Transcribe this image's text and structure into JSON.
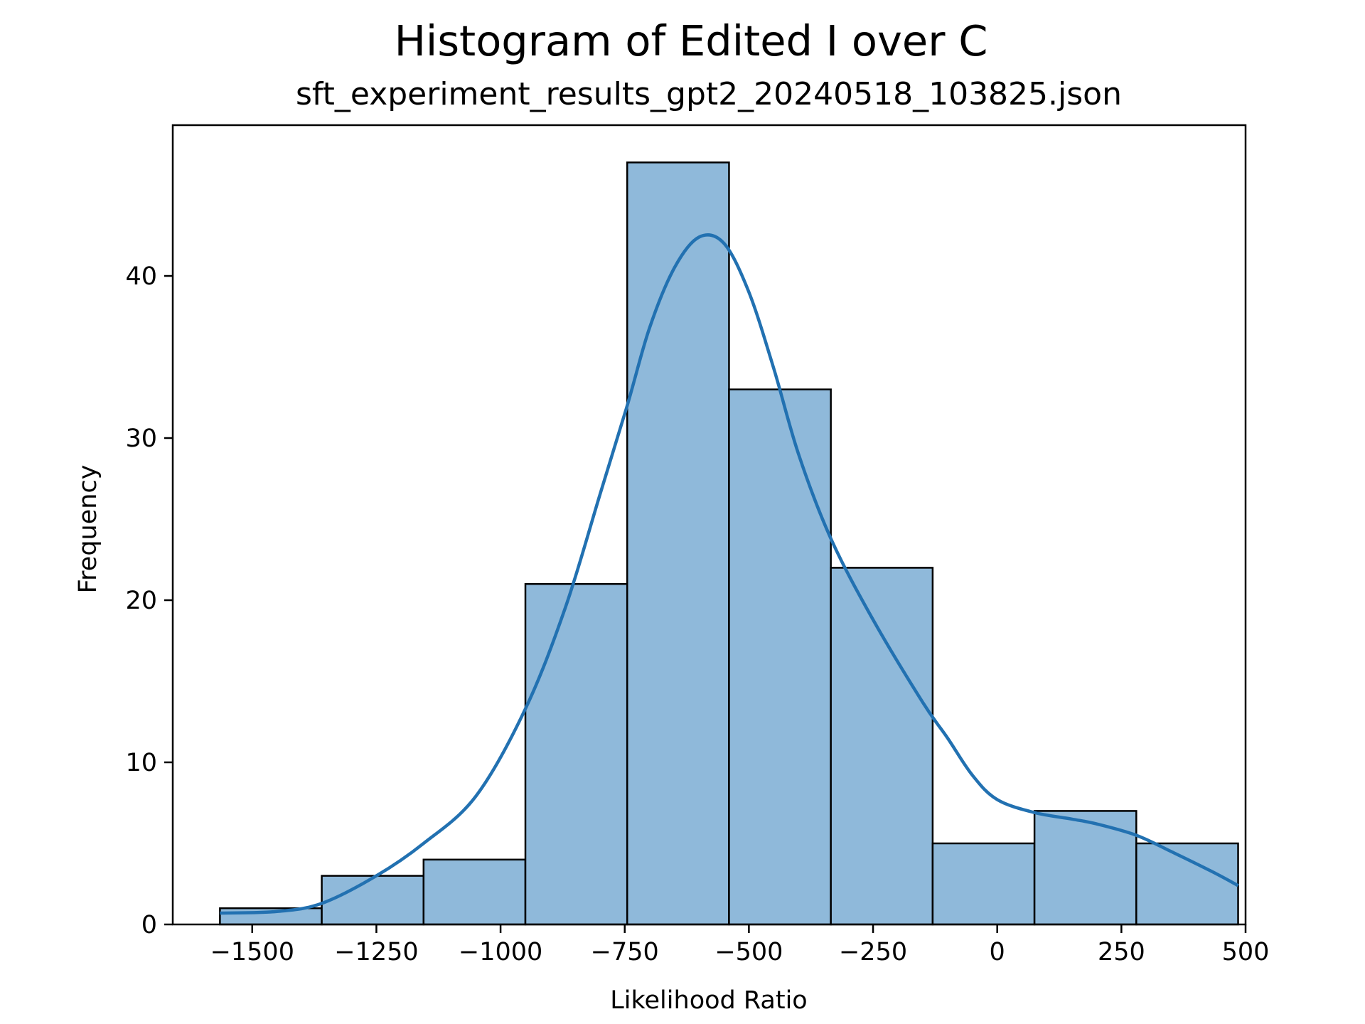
{
  "chart_data": {
    "type": "bar",
    "subtype": "histogram-with-kde",
    "title": "Histogram of Edited I over C",
    "subtitle": "sft_experiment_results_gpt2_20240518_103825.json",
    "xlabel": "Likelihood Ratio",
    "ylabel": "Frequency",
    "xlim": [
      -1660,
      500
    ],
    "ylim": [
      0,
      49.3
    ],
    "xticks": [
      -1500,
      -1250,
      -1000,
      -750,
      -500,
      -250,
      0,
      250,
      500
    ],
    "xtick_labels": [
      "−1500",
      "−1250",
      "−1000",
      "−750",
      "−500",
      "−250",
      "0",
      "250",
      "500"
    ],
    "yticks": [
      0,
      10,
      20,
      30,
      40
    ],
    "ytick_labels": [
      "0",
      "10",
      "20",
      "30",
      "40"
    ],
    "grid": false,
    "bin_edges": [
      -1565,
      -1360,
      -1155,
      -950,
      -745,
      -540,
      -335,
      -130,
      75,
      280,
      485
    ],
    "counts": [
      1,
      3,
      4,
      21,
      47,
      33,
      22,
      5,
      7,
      5
    ],
    "kde": {
      "x": [
        -1565,
        -1450,
        -1360,
        -1250,
        -1155,
        -1050,
        -950,
        -870,
        -800,
        -745,
        -700,
        -650,
        -600,
        -550,
        -500,
        -450,
        -400,
        -335,
        -250,
        -150,
        -100,
        -50,
        0,
        75,
        150,
        200,
        280,
        350,
        430,
        485
      ],
      "y": [
        0.7,
        0.8,
        1.3,
        3.0,
        5.0,
        7.9,
        13.3,
        19.5,
        26.5,
        32.0,
        36.8,
        40.5,
        42.4,
        42.0,
        39.0,
        34.3,
        29.0,
        23.8,
        18.8,
        13.7,
        11.5,
        9.2,
        7.7,
        6.9,
        6.5,
        6.2,
        5.5,
        4.5,
        3.3,
        2.4
      ]
    },
    "colors": {
      "bar_fill": "#8fb9da",
      "bar_edge": "#000000",
      "kde_line": "#2271b1"
    }
  }
}
